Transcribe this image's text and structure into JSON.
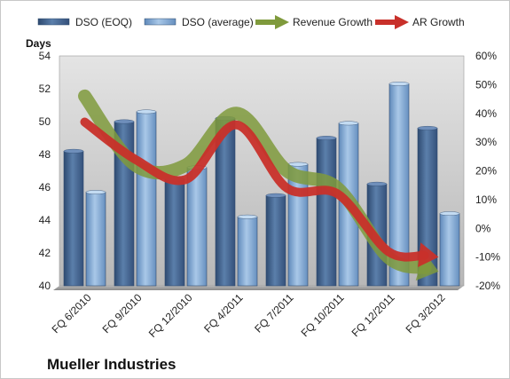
{
  "chart_data": {
    "type": "bar",
    "categories": [
      "FQ 6/2010",
      "FQ 9/2010",
      "FQ 12/2010",
      "FQ 4/2011",
      "FQ 7/2011",
      "FQ 10/2011",
      "FQ 12/2011",
      "FQ 3/2012"
    ],
    "series": [
      {
        "name": "DSO (EOQ)",
        "type": "bar",
        "axis": "left",
        "color": "#4a6a94",
        "values": [
          48.2,
          50.0,
          46.5,
          50.2,
          45.5,
          49.0,
          46.2,
          49.6
        ]
      },
      {
        "name": "DSO (average)",
        "type": "bar",
        "axis": "left",
        "color": "#7ea5cf",
        "values": [
          45.7,
          50.6,
          47.2,
          44.2,
          47.4,
          49.9,
          52.3,
          44.4
        ]
      },
      {
        "name": "Revenue Growth",
        "type": "line",
        "axis": "right",
        "unit": "%",
        "color": "#7f9a3c",
        "values": [
          46,
          22,
          22,
          40,
          20,
          14,
          -10,
          -15
        ]
      },
      {
        "name": "AR Growth",
        "type": "line",
        "axis": "right",
        "unit": "%",
        "color": "#c8302a",
        "values": [
          37,
          24,
          17,
          36,
          14,
          12,
          -8,
          -10
        ]
      }
    ],
    "ylabel": "Days",
    "ylim": [
      40,
      54
    ],
    "yticks": [
      40,
      42,
      44,
      46,
      48,
      50,
      52,
      54
    ],
    "y2lim": [
      -20,
      60
    ],
    "y2ticks": [
      "-20%",
      "-10%",
      "0%",
      "10%",
      "20%",
      "30%",
      "40%",
      "50%",
      "60%"
    ],
    "legend_position": "top",
    "grid": false,
    "title": "Mueller Industries"
  }
}
